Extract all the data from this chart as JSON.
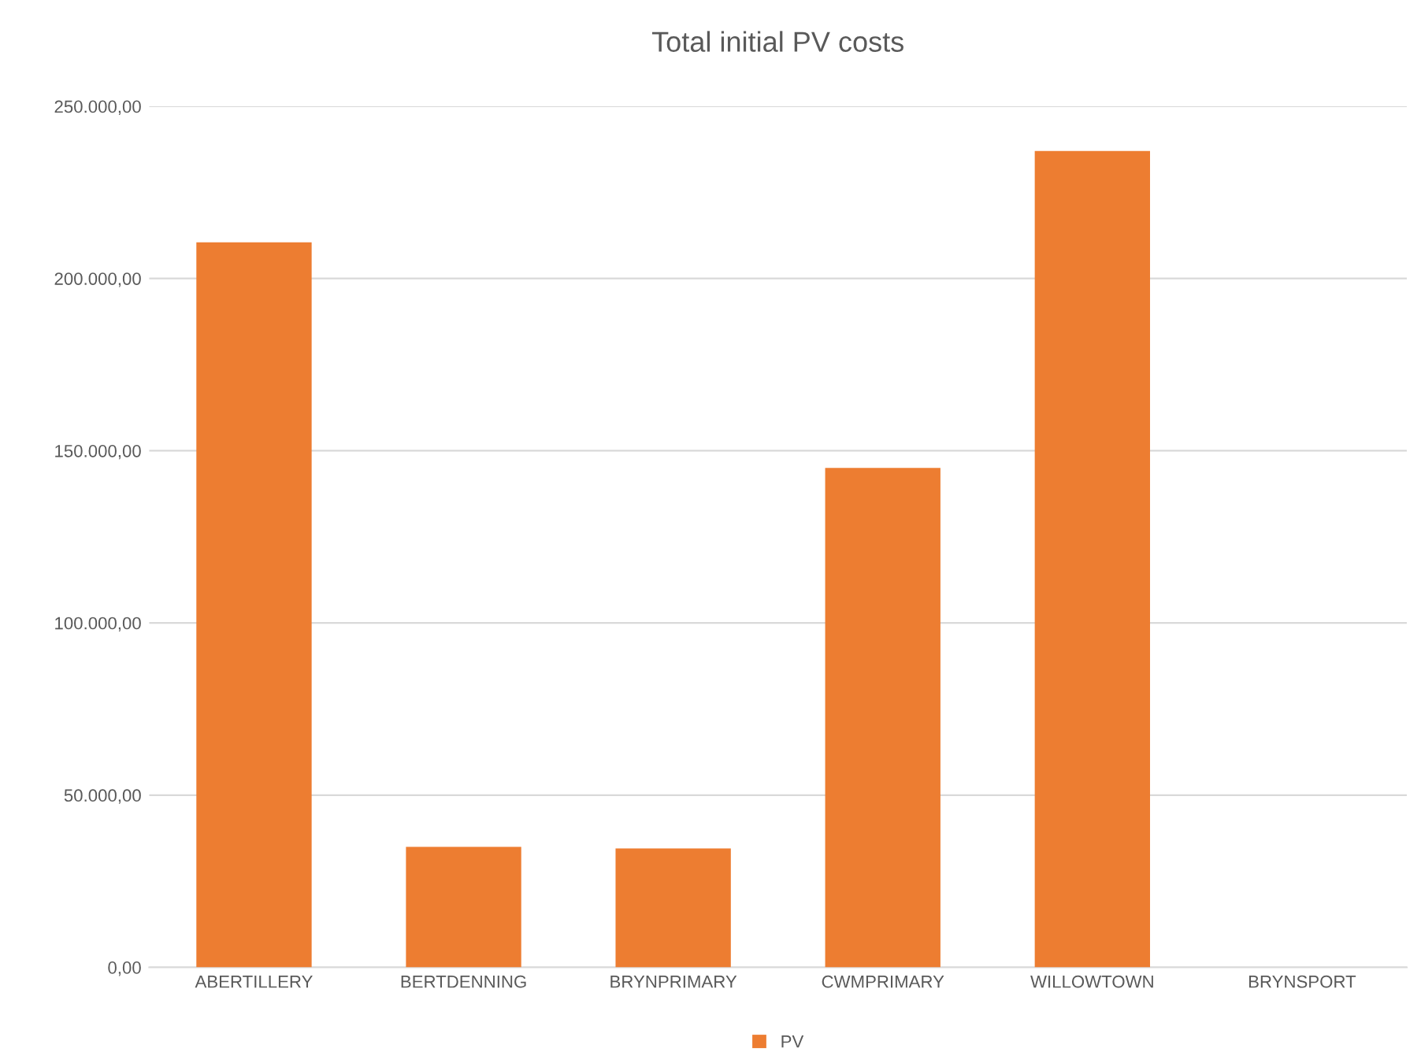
{
  "chart_data": {
    "type": "bar",
    "title": "Total initial PV costs",
    "categories": [
      "ABERTILLERY",
      "BERTDENNING",
      "BRYNPRIMARY",
      "CWMPRIMARY",
      "WILLOWTOWN",
      "BRYNSPORT"
    ],
    "series": [
      {
        "name": "PV",
        "color": "#ed7d31",
        "values": [
          210500,
          35000,
          34500,
          145000,
          237000,
          0
        ]
      }
    ],
    "ylim": [
      0,
      250000
    ],
    "yticks": [
      {
        "value": 0,
        "label": "0,00"
      },
      {
        "value": 50000,
        "label": "50.000,00"
      },
      {
        "value": 100000,
        "label": "100.000,00"
      },
      {
        "value": 150000,
        "label": "150.000,00"
      },
      {
        "value": 200000,
        "label": "200.000,00"
      },
      {
        "value": 250000,
        "label": "250.000,00"
      }
    ],
    "grid": "y",
    "legend": "bottom"
  }
}
